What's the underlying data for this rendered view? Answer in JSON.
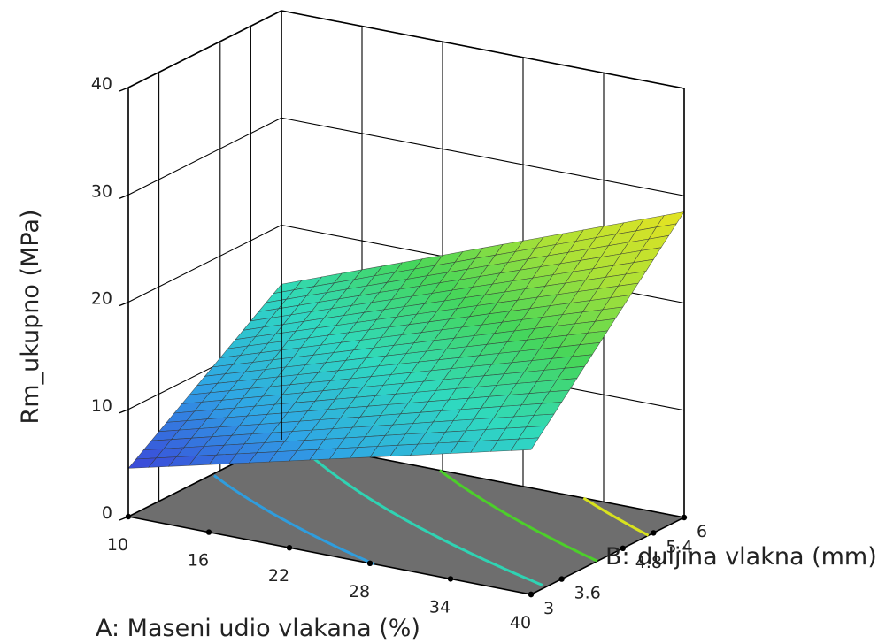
{
  "chart_data": {
    "type": "surface",
    "xlabel": "A: Maseni udio vlakana (%)",
    "ylabel": "B: duljina vlakna (mm)",
    "zlabel": "Rm_ukupno (MPa)",
    "x_range": [
      10,
      40
    ],
    "y_range": [
      3,
      6
    ],
    "z_range": [
      0,
      40
    ],
    "x_ticks": [
      10,
      16,
      22,
      28,
      34,
      40
    ],
    "y_ticks": [
      3,
      3.6,
      4.8,
      5.4,
      6
    ],
    "z_ticks": [
      0,
      10,
      20,
      30,
      40
    ],
    "y_tick_labels": [
      "3",
      "3.6",
      "4.8",
      "5.4",
      "6"
    ],
    "surface_corners": [
      {
        "A": 10,
        "B": 3,
        "Rm": 4.5
      },
      {
        "A": 40,
        "B": 3,
        "Rm": 13.5
      },
      {
        "A": 10,
        "B": 6,
        "Rm": 14.5
      },
      {
        "A": 40,
        "B": 6,
        "Rm": 28.5
      }
    ],
    "mesh_divisions": 20,
    "contour_levels": [
      10,
      15,
      20,
      25
    ],
    "contour_colors": [
      "#2f9ddd",
      "#2fd3b3",
      "#4ccf2a",
      "#d8e21e"
    ],
    "colormap": [
      "#3b43d8",
      "#2fa5e6",
      "#2fd9c0",
      "#46d65a",
      "#aee135",
      "#e8e321"
    ],
    "floor_color": "#6e6e6e",
    "grid": true
  }
}
